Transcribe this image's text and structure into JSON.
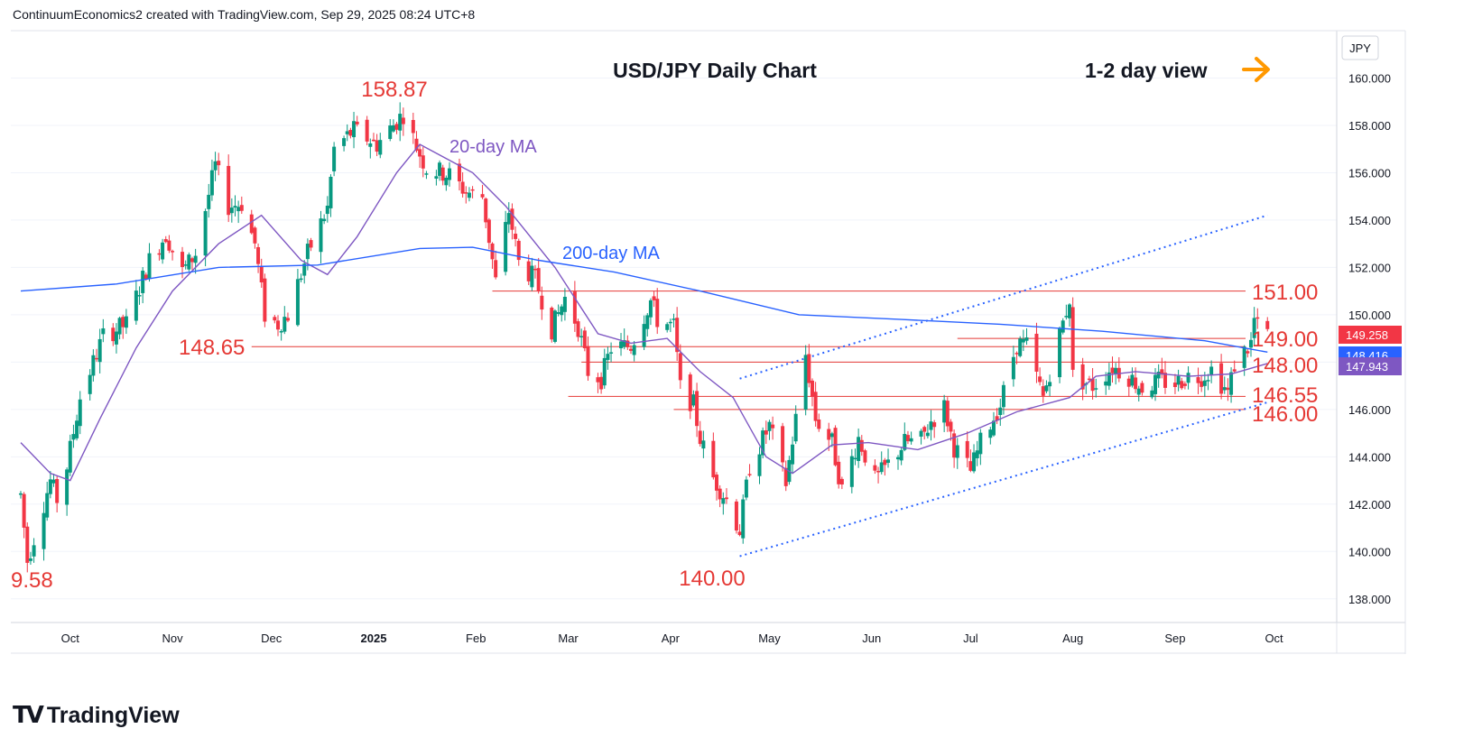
{
  "header": {
    "caption": "ContinuumEconomics2 created with TradingView.com, Sep 29, 2025 08:24 UTC+8"
  },
  "brand": {
    "logo_icon": "tradingview-logo-icon",
    "name": "TradingView"
  },
  "chart_data": {
    "type": "candlestick",
    "title": "USD/JPY Daily Chart",
    "view_note": "1-2 day view",
    "view_icon": "arrow-right-icon",
    "currency": "JPY",
    "ylim": [
      137,
      162
    ],
    "y_ticks": [
      "138.000",
      "140.000",
      "142.000",
      "144.000",
      "146.000",
      "148.000",
      "150.000",
      "152.000",
      "154.000",
      "156.000",
      "158.000",
      "160.000"
    ],
    "x_ticks": [
      "Oct",
      "Nov",
      "Dec",
      "2025",
      "Feb",
      "Mar",
      "Apr",
      "May",
      "Jun",
      "Jul",
      "Aug",
      "Sep",
      "Oct"
    ],
    "grid": true,
    "colors": {
      "up": "#089981",
      "down": "#f23645",
      "ma20": "#7e57c2",
      "ma200": "#2962ff",
      "level": "#e53935",
      "trend": "#2962ff",
      "arrow": "#ff9800"
    },
    "price_tags": [
      {
        "value": "149.258",
        "bg": "#f23645"
      },
      {
        "value": "148.416",
        "bg": "#2962ff"
      },
      {
        "value": "147.943",
        "bg": "#7e57c2"
      }
    ],
    "levels": [
      {
        "label": "151.00",
        "value": 151.0
      },
      {
        "label": "149.00",
        "value": 149.0
      },
      {
        "label": "148.65",
        "value": 148.65
      },
      {
        "label": "148.00",
        "value": 148.0
      },
      {
        "label": "146.55",
        "value": 146.55
      },
      {
        "label": "146.00",
        "value": 146.0
      }
    ],
    "annotations": [
      {
        "text": "158.87",
        "kind": "high"
      },
      {
        "text": "140.00",
        "kind": "low"
      },
      {
        "text": "9.58",
        "kind": "low-cut"
      },
      {
        "text": "20-day MA",
        "kind": "ma20"
      },
      {
        "text": "200-day MA",
        "kind": "ma200"
      }
    ],
    "trend_channel": {
      "lower": [
        [
          "2025-04-22",
          139.8
        ],
        [
          "2025-09-29",
          146.3
        ]
      ],
      "upper": [
        [
          "2025-04-22",
          147.3
        ],
        [
          "2025-09-29",
          154.2
        ]
      ]
    },
    "series": [
      {
        "name": "price",
        "values": [
          [
            "2024-09-16",
            142.4
          ],
          [
            "2024-09-18",
            139.6
          ],
          [
            "2024-09-25",
            143.0
          ],
          [
            "2024-09-27",
            142.2
          ],
          [
            "2024-09-30",
            143.6
          ],
          [
            "2024-10-04",
            146.5
          ],
          [
            "2024-10-11",
            149.1
          ],
          [
            "2024-10-18",
            149.6
          ],
          [
            "2024-10-25",
            152.3
          ],
          [
            "2024-10-30",
            153.4
          ],
          [
            "2024-11-04",
            151.8
          ],
          [
            "2024-11-08",
            152.6
          ],
          [
            "2024-11-14",
            156.3
          ],
          [
            "2024-11-18",
            154.6
          ],
          [
            "2024-11-22",
            154.7
          ],
          [
            "2024-11-26",
            153.0
          ],
          [
            "2024-11-29",
            150.0
          ],
          [
            "2024-12-03",
            149.6
          ],
          [
            "2024-12-06",
            150.0
          ],
          [
            "2024-12-12",
            152.6
          ],
          [
            "2024-12-18",
            154.5
          ],
          [
            "2024-12-20",
            157.0
          ],
          [
            "2024-12-26",
            157.8
          ],
          [
            "2025-01-02",
            157.2
          ],
          [
            "2025-01-10",
            158.5
          ],
          [
            "2025-01-14",
            157.1
          ],
          [
            "2025-01-17",
            156.2
          ],
          [
            "2025-01-24",
            155.9
          ],
          [
            "2025-01-29",
            155.2
          ],
          [
            "2025-02-03",
            155.0
          ],
          [
            "2025-02-07",
            151.4
          ],
          [
            "2025-02-11",
            154.4
          ],
          [
            "2025-02-14",
            152.2
          ],
          [
            "2025-02-19",
            151.5
          ],
          [
            "2025-02-24",
            149.4
          ],
          [
            "2025-02-28",
            150.7
          ],
          [
            "2025-03-04",
            149.5
          ],
          [
            "2025-03-07",
            147.6
          ],
          [
            "2025-03-11",
            147.3
          ],
          [
            "2025-03-14",
            148.6
          ],
          [
            "2025-03-20",
            148.7
          ],
          [
            "2025-03-26",
            150.6
          ],
          [
            "2025-03-28",
            149.8
          ],
          [
            "2025-04-02",
            149.5
          ],
          [
            "2025-04-04",
            146.9
          ],
          [
            "2025-04-08",
            146.2
          ],
          [
            "2025-04-10",
            144.8
          ],
          [
            "2025-04-14",
            143.1
          ],
          [
            "2025-04-18",
            142.2
          ],
          [
            "2025-04-22",
            140.9
          ],
          [
            "2025-04-25",
            143.6
          ],
          [
            "2025-05-01",
            145.3
          ],
          [
            "2025-05-06",
            142.9
          ],
          [
            "2025-05-12",
            148.3
          ],
          [
            "2025-05-15",
            145.6
          ],
          [
            "2025-05-20",
            144.6
          ],
          [
            "2025-05-23",
            142.6
          ],
          [
            "2025-05-28",
            144.8
          ],
          [
            "2025-06-02",
            143.0
          ],
          [
            "2025-06-05",
            143.5
          ],
          [
            "2025-06-11",
            144.6
          ],
          [
            "2025-06-16",
            144.7
          ],
          [
            "2025-06-19",
            145.5
          ],
          [
            "2025-06-23",
            146.1
          ],
          [
            "2025-06-26",
            144.4
          ],
          [
            "2025-07-01",
            143.4
          ],
          [
            "2025-07-04",
            144.6
          ],
          [
            "2025-07-10",
            146.2
          ],
          [
            "2025-07-15",
            148.8
          ],
          [
            "2025-07-18",
            148.7
          ],
          [
            "2025-07-23",
            146.5
          ],
          [
            "2025-07-25",
            147.6
          ],
          [
            "2025-07-31",
            150.7
          ],
          [
            "2025-08-01",
            147.4
          ],
          [
            "2025-08-07",
            147.0
          ],
          [
            "2025-08-13",
            147.8
          ],
          [
            "2025-08-18",
            147.4
          ],
          [
            "2025-08-22",
            146.9
          ],
          [
            "2025-08-27",
            147.2
          ],
          [
            "2025-09-01",
            147.1
          ],
          [
            "2025-09-05",
            147.4
          ],
          [
            "2025-09-09",
            147.4
          ],
          [
            "2025-09-12",
            147.7
          ],
          [
            "2025-09-17",
            146.7
          ],
          [
            "2025-09-19",
            147.9
          ],
          [
            "2025-09-24",
            148.8
          ],
          [
            "2025-09-25",
            149.8
          ],
          [
            "2025-09-26",
            149.5
          ],
          [
            "2025-09-29",
            149.26
          ]
        ]
      },
      {
        "name": "20-day MA",
        "values": [
          [
            "2024-09-16",
            144.6
          ],
          [
            "2024-09-25",
            143.3
          ],
          [
            "2024-10-01",
            143.0
          ],
          [
            "2024-10-10",
            145.6
          ],
          [
            "2024-10-21",
            148.6
          ],
          [
            "2024-11-01",
            151.0
          ],
          [
            "2024-11-15",
            153.0
          ],
          [
            "2024-11-28",
            154.2
          ],
          [
            "2024-12-10",
            152.3
          ],
          [
            "2024-12-18",
            151.7
          ],
          [
            "2024-12-27",
            153.3
          ],
          [
            "2025-01-08",
            156.0
          ],
          [
            "2025-01-15",
            157.2
          ],
          [
            "2025-01-31",
            156.0
          ],
          [
            "2025-02-10",
            154.6
          ],
          [
            "2025-02-25",
            152.0
          ],
          [
            "2025-03-10",
            149.2
          ],
          [
            "2025-03-20",
            148.8
          ],
          [
            "2025-03-31",
            149.0
          ],
          [
            "2025-04-10",
            147.6
          ],
          [
            "2025-04-20",
            146.5
          ],
          [
            "2025-04-30",
            144.0
          ],
          [
            "2025-05-08",
            143.3
          ],
          [
            "2025-05-20",
            144.5
          ],
          [
            "2025-05-31",
            144.6
          ],
          [
            "2025-06-15",
            144.3
          ],
          [
            "2025-06-30",
            145.0
          ],
          [
            "2025-07-15",
            145.9
          ],
          [
            "2025-07-31",
            146.5
          ],
          [
            "2025-08-08",
            147.4
          ],
          [
            "2025-08-20",
            147.6
          ],
          [
            "2025-09-05",
            147.4
          ],
          [
            "2025-09-18",
            147.5
          ],
          [
            "2025-09-29",
            147.94
          ]
        ]
      },
      {
        "name": "200-day MA",
        "values": [
          [
            "2024-09-16",
            151.0
          ],
          [
            "2024-10-15",
            151.3
          ],
          [
            "2024-11-15",
            152.0
          ],
          [
            "2024-12-15",
            152.1
          ],
          [
            "2025-01-15",
            152.8
          ],
          [
            "2025-01-31",
            152.85
          ],
          [
            "2025-02-20",
            152.3
          ],
          [
            "2025-03-15",
            151.8
          ],
          [
            "2025-04-10",
            151.0
          ],
          [
            "2025-05-10",
            150.0
          ],
          [
            "2025-06-10",
            149.8
          ],
          [
            "2025-07-10",
            149.6
          ],
          [
            "2025-08-10",
            149.3
          ],
          [
            "2025-09-10",
            148.9
          ],
          [
            "2025-09-29",
            148.42
          ]
        ]
      }
    ]
  }
}
